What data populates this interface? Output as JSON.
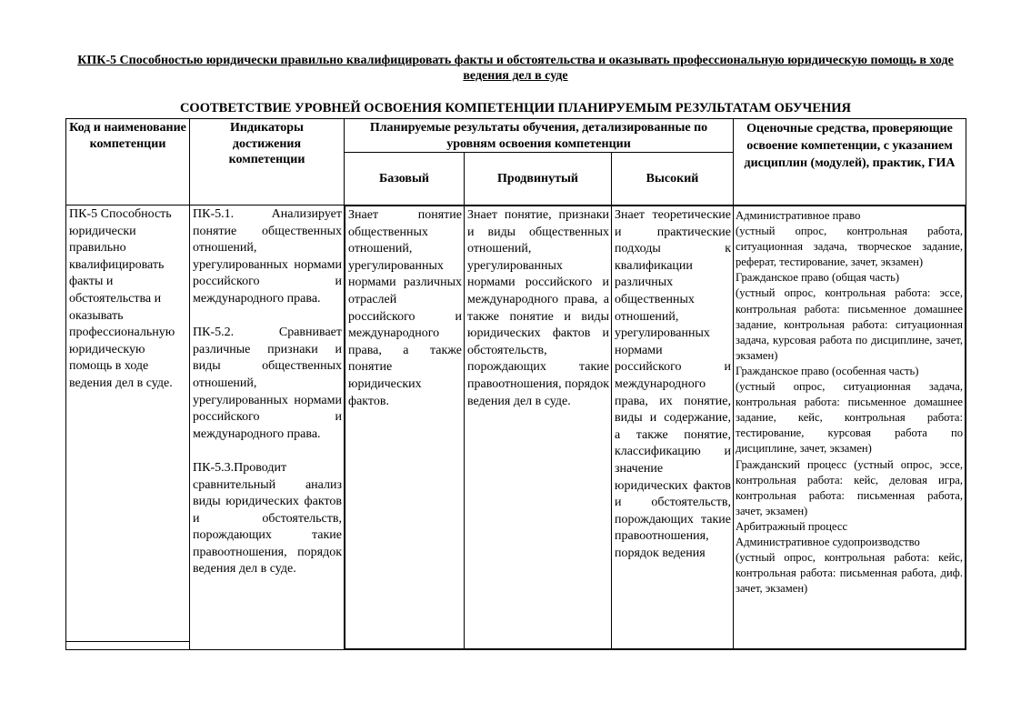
{
  "title": "КПК-5 Способностью юридически правильно квалифицировать факты и обстоятельства и оказывать профессиональную юридическую помощь в ходе ведения дел в суде",
  "subtitle": "СООТВЕТСТВИЕ УРОВНЕЙ ОСВОЕНИЯ КОМПЕТЕНЦИИ ПЛАНИРУЕМЫМ РЕЗУЛЬТАТАМ ОБУЧЕНИЯ",
  "table": {
    "headers": {
      "code": "Код и наименование компетенции",
      "indicators": "Индикаторы достижения компетенции",
      "planned": "Планируемые результаты обучения, детализированные по уровням освоения компетенции",
      "basic": "Базовый",
      "advanced": "Продвинутый",
      "high": "Высокий",
      "assessment": "Оценочные средства, проверяющие освоение компетенции, с указанием дисциплин (модулей), практик, ГИА"
    },
    "row": {
      "code": "ПК-5 Способность юридически правильно квалифицировать факты и обстоятельства и оказывать профессиональную юридическую помощь в ходе ведения дел в суде.",
      "indicators": [
        "ПК-5.1. Анализирует понятие общественных отношений, урегулированных нормами российского и международного права.",
        "ПК-5.2. Сравнивает различные признаки и виды общественных отношений, урегулированных нормами российского и международного права.",
        "ПК-5.3.Проводит сравнительный анализ виды юридических фактов и обстоятельств, порождающих такие правоотношения, порядок ведения дел в суде."
      ],
      "basic": "Знает понятие общественных отношений, урегулированных нормами различных отраслей российского и международного права, а также понятие юридических фактов.",
      "advanced": "Знает понятие, признаки и виды общественных отношений, урегулированных нормами российского и международного права, а также понятие и виды юридических фактов и обстоятельств, порождающих такие правоотношения, порядок ведения дел в суде.",
      "high": "Знает теоретические и практические подходы к квалификации различных общественных отношений, урегулированных нормами российского и международного права, их понятие, виды и содержание, а также понятие, классификацию и значение юридических фактов и обстоятельств, порождающих такие правоотношения, порядок ведения",
      "assessment": [
        "Административное право",
        "(устный опрос, контрольная работа, ситуационная задача, творческое задание, реферат, тестирование, зачет, экзамен)",
        "Гражданское право (общая часть)",
        "(устный опрос, контрольная работа: эссе, контрольная работа: письменное домашнее задание, контрольная работа: ситуационная задача, курсовая работа по дисциплине, зачет, экзамен)",
        "Гражданское право (особенная часть)",
        "(устный опрос, ситуационная задача, контрольная работа: письменное домашнее задание, кейс, контрольная работа: тестирование, курсовая работа по дисциплине, зачет, экзамен)",
        "Гражданский процесс (устный опрос, эссе, контрольная работа: кейс, деловая игра, контрольная работа: письменная работа, зачет, экзамен)",
        "Арбитражный процесс",
        "Административное судопроизводство",
        "(устный опрос, контрольная работа: кейс, контрольная работа: письменная работа, диф. зачет, экзамен)"
      ]
    }
  }
}
